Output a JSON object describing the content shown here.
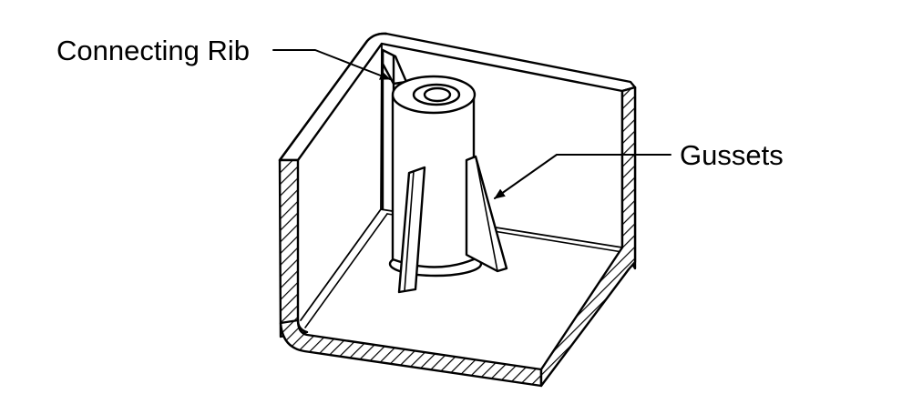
{
  "labels": {
    "connecting_rib": "Connecting Rib",
    "gussets": "Gussets"
  }
}
